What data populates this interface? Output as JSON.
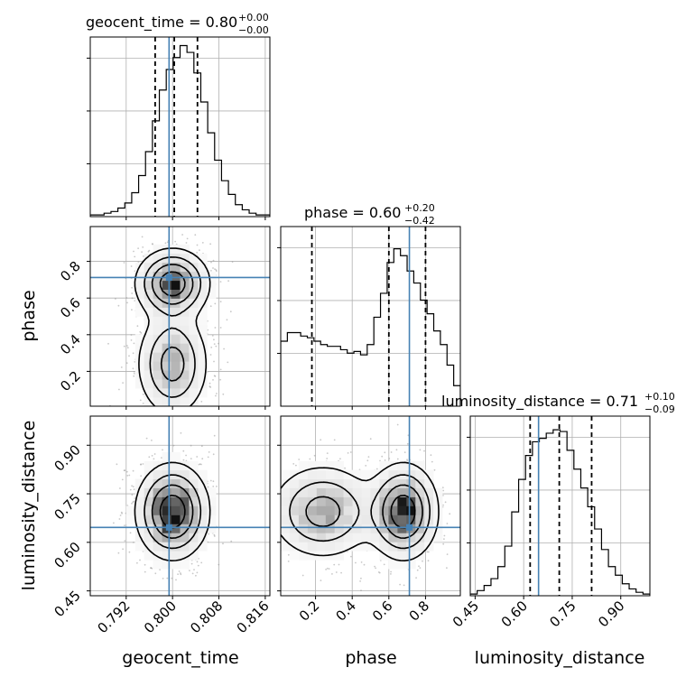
{
  "chart_data": {
    "type": "corner",
    "parameters": [
      "geocent_time",
      "phase",
      "luminosity_distance"
    ],
    "ranges": {
      "geocent_time": [
        0.7858,
        0.8168
      ],
      "phase": [
        0.01,
        0.99
      ],
      "luminosity_distance": [
        0.435,
        0.99
      ]
    },
    "truths": {
      "geocent_time": 0.7994,
      "phase": 0.712,
      "luminosity_distance": 0.646
    },
    "quantiles": {
      "geocent_time": [
        0.797,
        0.8003,
        0.8043
      ],
      "phase": [
        0.18,
        0.6,
        0.8
      ],
      "luminosity_distance": [
        0.62,
        0.71,
        0.81
      ]
    },
    "titles": {
      "geocent_time": {
        "name": "geocent_time",
        "value": "0.80",
        "plus": "+0.00",
        "minus": "−0.00"
      },
      "phase": {
        "name": "phase",
        "value": "0.60",
        "plus": "+0.20",
        "minus": "−0.42"
      },
      "luminosity_distance": {
        "name": "luminosity_distance",
        "value": "0.71",
        "plus": "+0.10",
        "minus": "−0.09"
      }
    },
    "ticks": {
      "geocent_time": [
        "0.792",
        "0.800",
        "0.808",
        "0.816"
      ],
      "phase": [
        "0.2",
        "0.4",
        "0.6",
        "0.8"
      ],
      "luminosity_distance": [
        "0.45",
        "0.60",
        "0.75",
        "0.90"
      ]
    },
    "tick_values": {
      "geocent_time": [
        0.792,
        0.8,
        0.808,
        0.816
      ],
      "phase": [
        0.2,
        0.4,
        0.6,
        0.8
      ],
      "luminosity_distance": [
        0.45,
        0.6,
        0.75,
        0.9
      ]
    },
    "histograms": {
      "geocent_time": [
        0.01,
        0.01,
        0.02,
        0.03,
        0.05,
        0.08,
        0.14,
        0.24,
        0.38,
        0.56,
        0.74,
        0.86,
        0.93,
        1.0,
        0.96,
        0.84,
        0.67,
        0.49,
        0.33,
        0.21,
        0.13,
        0.07,
        0.04,
        0.02,
        0.01,
        0.01
      ],
      "phase": [
        0.38,
        0.43,
        0.43,
        0.41,
        0.4,
        0.38,
        0.36,
        0.35,
        0.35,
        0.33,
        0.31,
        0.32,
        0.3,
        0.36,
        0.52,
        0.66,
        0.84,
        0.92,
        0.88,
        0.79,
        0.72,
        0.62,
        0.54,
        0.44,
        0.36,
        0.24,
        0.12
      ],
      "luminosity_distance": [
        0.01,
        0.03,
        0.06,
        0.1,
        0.17,
        0.29,
        0.49,
        0.68,
        0.82,
        0.9,
        0.92,
        0.95,
        0.97,
        0.96,
        0.85,
        0.74,
        0.63,
        0.52,
        0.39,
        0.27,
        0.17,
        0.12,
        0.07,
        0.04,
        0.02,
        0.01
      ]
    },
    "grid": true,
    "legend": "none"
  }
}
